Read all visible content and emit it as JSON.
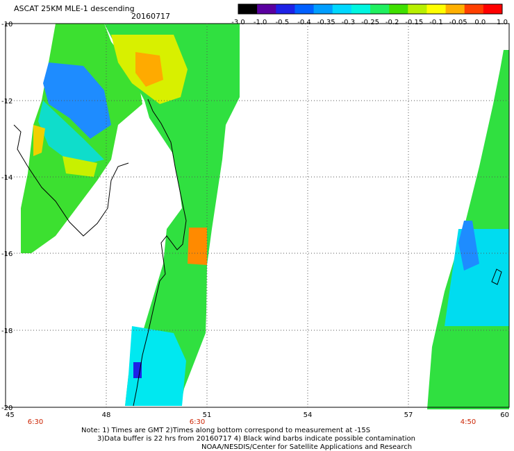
{
  "header": {
    "title": "ASCAT 25KM MLE-1 descending",
    "date": "20160717"
  },
  "colorbar": {
    "labels": [
      "-3.0",
      "-1.0",
      "-0.5",
      "-0.4",
      "-0.35",
      "-0.3",
      "-0.25",
      "-0.2",
      "-0.15",
      "-0.1",
      "-0.05",
      "0.0",
      "1.0"
    ],
    "colors": [
      "#000000",
      "#5a00a0",
      "#1e22e6",
      "#0060ff",
      "#009eff",
      "#00d8ff",
      "#00f6e0",
      "#20f060",
      "#40e000",
      "#b8f000",
      "#ffff00",
      "#ffb000",
      "#ff4000",
      "#ff0000"
    ]
  },
  "axes": {
    "lon_labels": [
      "45",
      "48",
      "51",
      "54",
      "57",
      "60"
    ],
    "lat_labels": [
      "-10",
      "-12",
      "-14",
      "-16",
      "-18",
      "-20"
    ]
  },
  "times": [
    "6:30",
    "6:30",
    "4:50"
  ],
  "time_color": "#cc2200",
  "notes": {
    "line1": "Note: 1) Times are GMT 2)Times along bottom correspond to measurement at -15S",
    "line2": "3)Data buffer is 22 hrs from 20160717 4) Black wind barbs indicate possible contamination",
    "line3": "NOAA/NESDIS/Center for Satellite Applications and Research"
  }
}
